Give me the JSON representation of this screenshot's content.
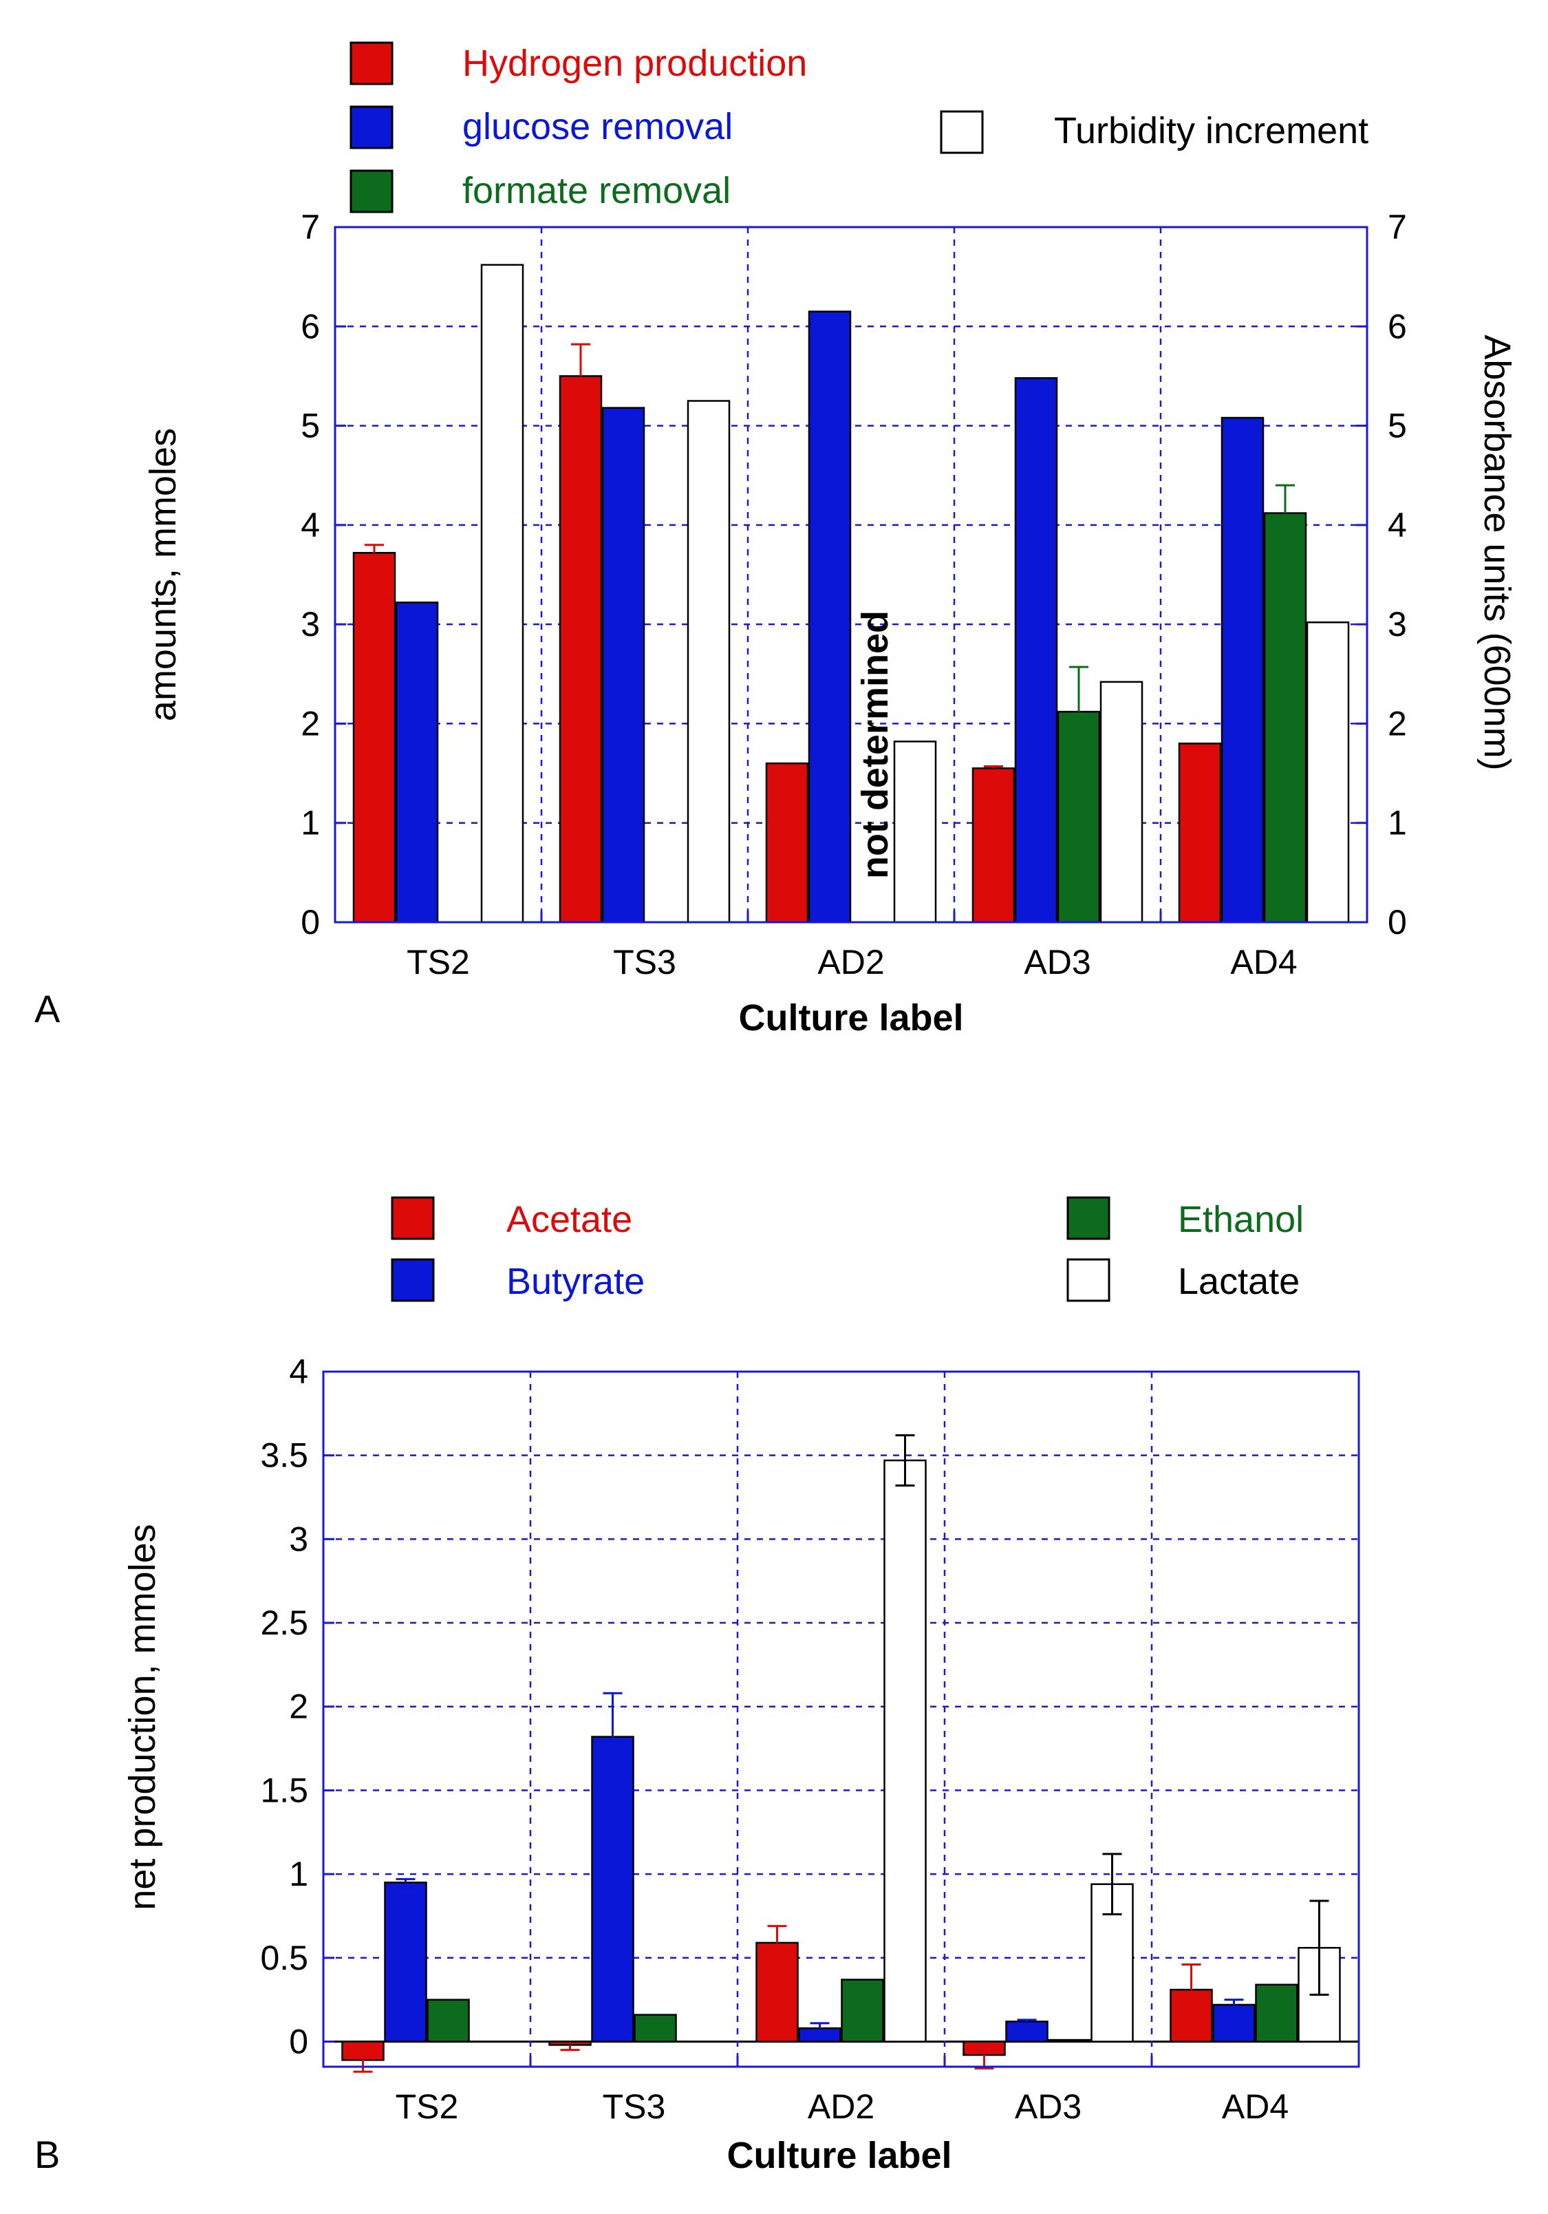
{
  "chart_data": [
    {
      "panel_label": "A",
      "type": "bar",
      "categories": [
        "TS2",
        "TS3",
        "AD2",
        "AD3",
        "AD4"
      ],
      "xlabel": "Culture label",
      "ylabel": "amounts, mmoles",
      "y2label": "Absorbance units (600nm)",
      "ylim": [
        0,
        7
      ],
      "y2lim": [
        0,
        7
      ],
      "yticks": [
        "0",
        "1",
        "2",
        "3",
        "4",
        "5",
        "6",
        "7"
      ],
      "grid": true,
      "legend_position": "top",
      "annotation": {
        "text": "not determined",
        "category": "AD2",
        "series": "formate removal",
        "color": "#0d6b1d"
      },
      "series": [
        {
          "name": "Hydrogen production",
          "axis": "left",
          "color": "#dd0a0a",
          "values": [
            3.72,
            5.5,
            1.6,
            1.55,
            1.8
          ],
          "errors": [
            0.08,
            0.32,
            null,
            0.02,
            null
          ]
        },
        {
          "name": "glucose removal",
          "axis": "left",
          "color": "#0b17d6",
          "values": [
            3.22,
            5.18,
            6.15,
            5.48,
            5.08
          ],
          "errors": [
            null,
            null,
            null,
            null,
            null
          ]
        },
        {
          "name": "formate removal",
          "axis": "left",
          "color": "#0d6b1d",
          "values": [
            null,
            null,
            null,
            2.12,
            4.12
          ],
          "errors": [
            null,
            null,
            null,
            0.45,
            0.28
          ]
        },
        {
          "name": "Turbidity increment",
          "axis": "right",
          "color": "#ffffff",
          "values": [
            6.62,
            5.25,
            1.82,
            2.42,
            3.02
          ],
          "errors": [
            null,
            null,
            null,
            null,
            null
          ]
        }
      ]
    },
    {
      "panel_label": "B",
      "type": "bar",
      "categories": [
        "TS2",
        "TS3",
        "AD2",
        "AD3",
        "AD4"
      ],
      "xlabel": "Culture label",
      "ylabel": "net production, mmoles",
      "ylim": [
        -0.15,
        4
      ],
      "yticks": [
        "0",
        "0.5",
        "1",
        "1.5",
        "2",
        "2.5",
        "3",
        "3.5",
        "4"
      ],
      "grid": true,
      "legend_position": "top",
      "series": [
        {
          "name": "Acetate",
          "color": "#dd0a0a",
          "values": [
            -0.11,
            -0.02,
            0.59,
            -0.08,
            0.31
          ],
          "errors": [
            0.07,
            0.03,
            0.1,
            0.08,
            0.15
          ]
        },
        {
          "name": "Butyrate",
          "color": "#0b17d6",
          "values": [
            0.95,
            1.82,
            0.08,
            0.12,
            0.22
          ],
          "errors": [
            0.02,
            0.26,
            0.03,
            0.01,
            0.03
          ]
        },
        {
          "name": "Ethanol",
          "color": "#0d6b1d",
          "values": [
            0.25,
            0.16,
            0.37,
            0.01,
            0.34
          ],
          "errors": [
            null,
            null,
            null,
            null,
            null
          ]
        },
        {
          "name": "Lactate",
          "color": "#ffffff",
          "values": [
            null,
            null,
            3.47,
            0.94,
            0.56
          ],
          "errors": [
            null,
            null,
            0.15,
            0.18,
            0.28
          ]
        }
      ]
    }
  ]
}
